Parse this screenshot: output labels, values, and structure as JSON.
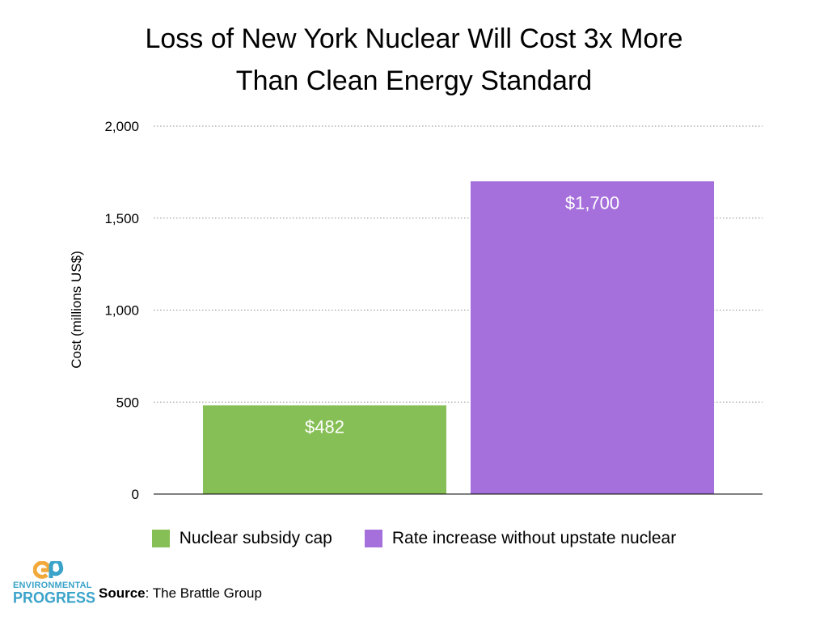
{
  "chart_data": {
    "type": "bar",
    "title_lines": [
      "Loss of New York Nuclear Will Cost 3x More",
      "Than Clean Energy Standard"
    ],
    "categories": [
      "Nuclear subsidy cap",
      "Rate increase without upstate nuclear"
    ],
    "values": [
      482,
      1700
    ],
    "data_labels": [
      "$482",
      "$1,700"
    ],
    "colors": [
      "#86bf55",
      "#a56fdc"
    ],
    "xlabel": "",
    "ylabel": "Cost (millions US$)",
    "ylim": [
      0,
      2000
    ],
    "yticks": [
      0,
      500,
      1000,
      1500,
      2000
    ],
    "ytick_labels": [
      "0",
      "500",
      "1,000",
      "1,500",
      "2,000"
    ],
    "grid": "horizontal dotted",
    "legend_position": "bottom"
  },
  "source": {
    "label": "Source",
    "text": ": The Brattle Group"
  },
  "logo": {
    "line1": "ENVIRONMENTAL",
    "line2": "PROGRESS",
    "icon": "ep-logo-icon",
    "colors": [
      "#f2a93b",
      "#3aa3c9"
    ]
  }
}
